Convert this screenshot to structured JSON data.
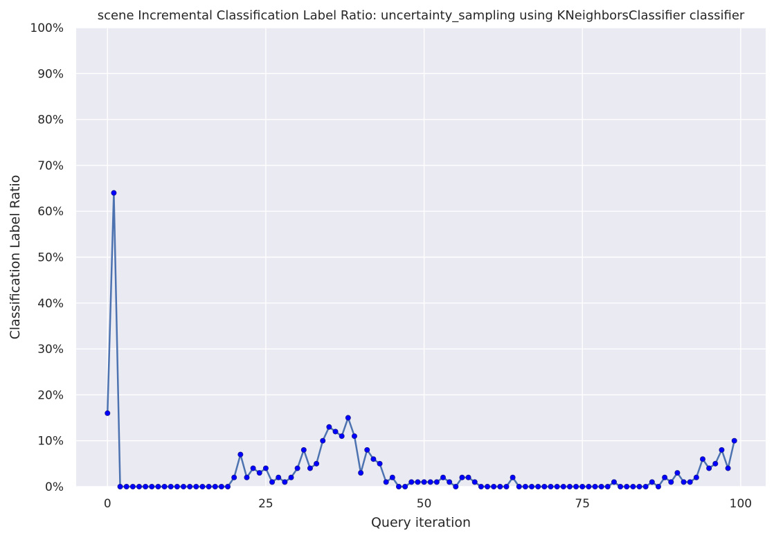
{
  "chart_data": {
    "type": "line",
    "title": "scene Incremental Classification Label Ratio: uncertainty_sampling using KNeighborsClassifier classifier",
    "xlabel": "Query iteration",
    "ylabel": "Classification Label Ratio",
    "xlim": [
      -4.95,
      103.95
    ],
    "ylim": [
      0,
      100
    ],
    "x_ticks": [
      0,
      25,
      50,
      75,
      100
    ],
    "x_tick_labels": [
      "0",
      "25",
      "50",
      "75",
      "100"
    ],
    "y_ticks": [
      0,
      10,
      20,
      30,
      40,
      50,
      60,
      70,
      80,
      90,
      100
    ],
    "y_tick_labels": [
      "0%",
      "10%",
      "20%",
      "30%",
      "40%",
      "50%",
      "60%",
      "70%",
      "80%",
      "90%",
      "100%"
    ],
    "grid": true,
    "background": "#eaeaf2",
    "grid_color": "#ffffff",
    "line_color": "#4c72b0",
    "marker_color": "#0000ff",
    "x": [
      0,
      1,
      2,
      3,
      4,
      5,
      6,
      7,
      8,
      9,
      10,
      11,
      12,
      13,
      14,
      15,
      16,
      17,
      18,
      19,
      20,
      21,
      22,
      23,
      24,
      25,
      26,
      27,
      28,
      29,
      30,
      31,
      32,
      33,
      34,
      35,
      36,
      37,
      38,
      39,
      40,
      41,
      42,
      43,
      44,
      45,
      46,
      47,
      48,
      49,
      50,
      51,
      52,
      53,
      54,
      55,
      56,
      57,
      58,
      59,
      60,
      61,
      62,
      63,
      64,
      65,
      66,
      67,
      68,
      69,
      70,
      71,
      72,
      73,
      74,
      75,
      76,
      77,
      78,
      79,
      80,
      81,
      82,
      83,
      84,
      85,
      86,
      87,
      88,
      89,
      90,
      91,
      92,
      93,
      94,
      95,
      96,
      97,
      98,
      99
    ],
    "y": [
      16,
      64,
      0,
      0,
      0,
      0,
      0,
      0,
      0,
      0,
      0,
      0,
      0,
      0,
      0,
      0,
      0,
      0,
      0,
      0,
      2,
      7,
      2,
      4,
      3,
      4,
      1,
      2,
      1,
      2,
      4,
      8,
      4,
      5,
      10,
      13,
      12,
      11,
      15,
      11,
      3,
      8,
      6,
      5,
      1,
      2,
      0,
      0,
      1,
      1,
      1,
      1,
      1,
      2,
      1,
      0,
      2,
      2,
      1,
      0,
      0,
      0,
      0,
      0,
      2,
      0,
      0,
      0,
      0,
      0,
      0,
      0,
      0,
      0,
      0,
      0,
      0,
      0,
      0,
      0,
      1,
      0,
      0,
      0,
      0,
      0,
      1,
      0,
      2,
      1,
      3,
      1,
      1,
      2,
      6,
      4,
      5,
      8,
      4,
      10
    ]
  }
}
